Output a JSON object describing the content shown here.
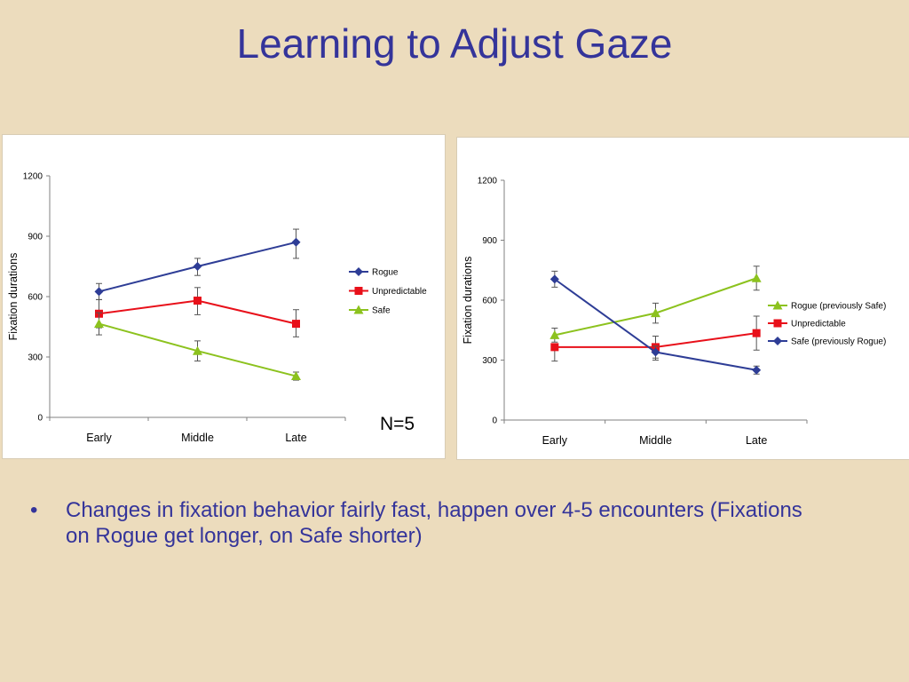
{
  "slide": {
    "title": "Learning to Adjust Gaze",
    "n_label": "N=5",
    "bullets": [
      {
        "marker": "•",
        "text": "Changes in fixation behavior fairly fast, happen over 4-5 encounters (Fixations on Rogue get longer, on Safe shorter)"
      }
    ]
  },
  "chart_data": [
    {
      "type": "line",
      "title": "",
      "xlabel": "",
      "ylabel": "Fixation durations",
      "categories": [
        "Early",
        "Middle",
        "Late"
      ],
      "ylim": [
        0,
        1200
      ],
      "yticks": [
        0,
        300,
        600,
        900,
        1200
      ],
      "grid": false,
      "legend": "right",
      "series": [
        {
          "name": "Rogue",
          "values": [
            625,
            750,
            870
          ],
          "err_high": [
            665,
            790,
            935
          ],
          "err_low": [
            585,
            705,
            790
          ],
          "color": "#2e3d96",
          "marker": "diamond"
        },
        {
          "name": "Unpredictable",
          "values": [
            515,
            580,
            465
          ],
          "err_high": [
            585,
            645,
            535
          ],
          "err_low": [
            445,
            510,
            400
          ],
          "color": "#e8101a",
          "marker": "square"
        },
        {
          "name": "Safe",
          "values": [
            465,
            330,
            205
          ],
          "err_high": [
            520,
            380,
            225
          ],
          "err_low": [
            410,
            280,
            185
          ],
          "color": "#8cc21e",
          "marker": "triangle"
        }
      ]
    },
    {
      "type": "line",
      "title": "",
      "xlabel": "",
      "ylabel": "Fixation durations",
      "categories": [
        "Early",
        "Middle",
        "Late"
      ],
      "ylim": [
        0,
        1200
      ],
      "yticks": [
        0,
        300,
        600,
        900,
        1200
      ],
      "grid": false,
      "legend": "right",
      "series": [
        {
          "name": "Rogue (previously Safe)",
          "values": [
            425,
            535,
            710
          ],
          "err_high": [
            460,
            585,
            770
          ],
          "err_low": [
            390,
            485,
            650
          ],
          "color": "#8cc21e",
          "marker": "triangle"
        },
        {
          "name": "Unpredictable",
          "values": [
            365,
            365,
            435
          ],
          "err_high": [
            365,
            420,
            520
          ],
          "err_low": [
            295,
            310,
            350
          ],
          "color": "#e8101a",
          "marker": "square"
        },
        {
          "name": "Safe (previously Rogue)",
          "values": [
            705,
            340,
            250
          ],
          "err_high": [
            745,
            370,
            270
          ],
          "err_low": [
            665,
            300,
            230
          ],
          "color": "#2e3d96",
          "marker": "diamond"
        }
      ]
    }
  ]
}
